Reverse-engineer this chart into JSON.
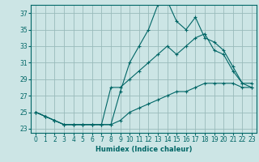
{
  "xlabel": "Humidex (Indice chaleur)",
  "bg_color": "#cce5e5",
  "grid_color": "#99bbbb",
  "line_color": "#006666",
  "xlim": [
    -0.5,
    23.5
  ],
  "ylim": [
    22.5,
    38.0
  ],
  "xticks": [
    0,
    1,
    2,
    3,
    4,
    5,
    6,
    7,
    8,
    9,
    10,
    11,
    12,
    13,
    14,
    15,
    16,
    17,
    18,
    19,
    20,
    21,
    22,
    23
  ],
  "yticks": [
    23,
    25,
    27,
    29,
    31,
    33,
    35,
    37
  ],
  "series": [
    {
      "x": [
        0,
        1,
        2,
        3,
        4,
        5,
        6,
        7,
        8,
        9,
        10,
        11,
        12,
        13,
        14,
        15,
        16,
        17,
        18,
        19,
        20,
        21,
        22,
        23
      ],
      "y": [
        25,
        24.5,
        24,
        23.5,
        23.5,
        23.5,
        23.5,
        23.5,
        23.5,
        27.5,
        31,
        33,
        35,
        38,
        38.5,
        36,
        35,
        36.5,
        34,
        33.5,
        32.5,
        30.5,
        28.5,
        28.5
      ]
    },
    {
      "x": [
        0,
        1,
        2,
        3,
        4,
        5,
        6,
        7,
        8,
        9,
        10,
        11,
        12,
        13,
        14,
        15,
        16,
        17,
        18,
        19,
        20,
        21,
        22,
        23
      ],
      "y": [
        25,
        24.5,
        24,
        23.5,
        23.5,
        23.5,
        23.5,
        23.5,
        28,
        28,
        29,
        30,
        31,
        32,
        33,
        32,
        33,
        34,
        34.5,
        32.5,
        32,
        30,
        28.5,
        28
      ]
    },
    {
      "x": [
        0,
        1,
        2,
        3,
        4,
        5,
        6,
        7,
        8,
        9,
        10,
        11,
        12,
        13,
        14,
        15,
        16,
        17,
        18,
        19,
        20,
        21,
        22,
        23
      ],
      "y": [
        25,
        24.5,
        24,
        23.5,
        23.5,
        23.5,
        23.5,
        23.5,
        23.5,
        24,
        25,
        25.5,
        26,
        26.5,
        27,
        27.5,
        27.5,
        28,
        28.5,
        28.5,
        28.5,
        28.5,
        28,
        28
      ]
    }
  ]
}
